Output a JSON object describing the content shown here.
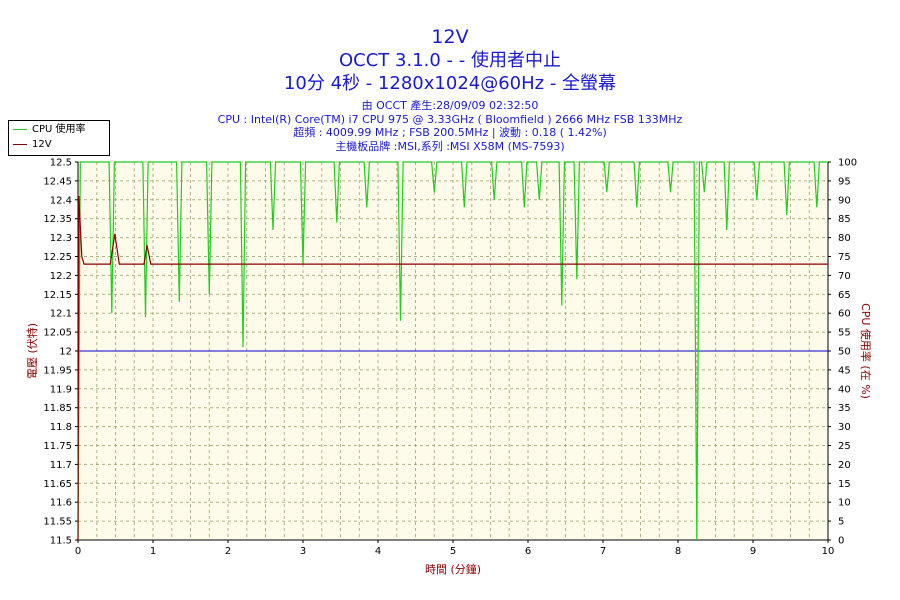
{
  "titles": {
    "line1": "12V",
    "line2": "OCCT 3.1.0 -  - 使用者中止",
    "line3": "10分 4秒 - 1280x1024@60Hz - 全螢幕"
  },
  "info": [
    "由 OCCT 產生:28/09/09 02:32:50",
    "CPU : Intel(R) Core(TM) i7 CPU 975 @ 3.33GHz ( Bloomfield ) 2666 MHz FSB 133MHz",
    "超頻 : 4009.99 MHz ; FSB 200.5MHz | 波動 : 0.18 ( 1.42%)",
    "主機板品牌 :MSI,系列 :MSI X58M (MS-7593)"
  ],
  "colors": {
    "cpu": "#22cc22",
    "volt": "#8b0000",
    "ref": "#0000cc",
    "plot_bg": "#fffbea",
    "grid": "#8a9a5b",
    "title": "#1a1acc"
  },
  "chart_data": {
    "type": "line",
    "xlabel": "時間 (分鐘)",
    "ylabel": "電壓 (伏特)",
    "y2label": "CPU 使用率 (在 %)",
    "xlim": [
      0,
      10
    ],
    "ylim": [
      11.5,
      12.5
    ],
    "y2lim": [
      0,
      100
    ],
    "x_ticks": [
      0,
      1,
      2,
      3,
      4,
      5,
      6,
      7,
      8,
      9,
      10
    ],
    "y_ticks": [
      "11.5",
      "11.55",
      "11.6",
      "11.65",
      "11.7",
      "11.75",
      "11.8",
      "11.85",
      "11.9",
      "11.95",
      "12",
      "12.05",
      "12.1",
      "12.15",
      "12.2",
      "12.25",
      "12.3",
      "12.35",
      "12.4",
      "12.45",
      "12.5"
    ],
    "y2_ticks": [
      0,
      5,
      10,
      15,
      20,
      25,
      30,
      35,
      40,
      45,
      50,
      55,
      60,
      65,
      70,
      75,
      80,
      85,
      90,
      95,
      100
    ],
    "grid": true,
    "legend": "top-left",
    "reference_line": 12.0,
    "series": [
      {
        "name": "CPU 使用率",
        "axis": "right",
        "baseline": 100,
        "start": [
          [
            0,
            0
          ],
          [
            0.03,
            100
          ]
        ],
        "dips": [
          [
            0.45,
            60
          ],
          [
            0.9,
            59
          ],
          [
            1.35,
            63
          ],
          [
            1.75,
            65
          ],
          [
            2.2,
            51
          ],
          [
            2.6,
            82
          ],
          [
            3.0,
            73
          ],
          [
            3.45,
            84
          ],
          [
            3.85,
            88
          ],
          [
            4.3,
            58
          ],
          [
            4.75,
            92
          ],
          [
            5.15,
            88
          ],
          [
            5.55,
            90
          ],
          [
            5.95,
            88
          ],
          [
            6.15,
            90
          ],
          [
            6.45,
            62
          ],
          [
            6.65,
            69
          ],
          [
            7.05,
            92
          ],
          [
            7.45,
            88
          ],
          [
            7.9,
            92
          ],
          [
            8.25,
            0
          ],
          [
            8.35,
            92
          ],
          [
            8.65,
            82
          ],
          [
            9.05,
            90
          ],
          [
            9.45,
            86
          ],
          [
            9.85,
            88
          ]
        ]
      },
      {
        "name": "12V",
        "axis": "left",
        "points": [
          [
            0,
            11.5
          ],
          [
            0.01,
            12.41
          ],
          [
            0.05,
            12.25
          ],
          [
            0.08,
            12.23
          ],
          [
            0.43,
            12.23
          ],
          [
            0.49,
            12.31
          ],
          [
            0.55,
            12.23
          ],
          [
            0.88,
            12.23
          ],
          [
            0.92,
            12.28
          ],
          [
            0.97,
            12.23
          ],
          [
            10,
            12.23
          ]
        ]
      }
    ]
  }
}
